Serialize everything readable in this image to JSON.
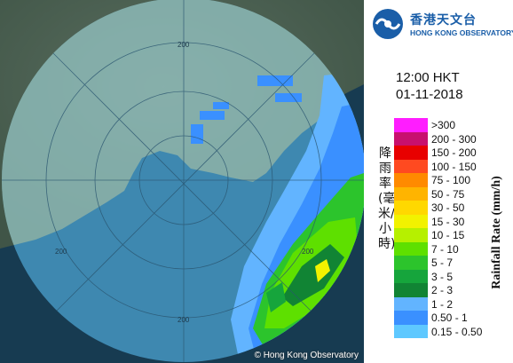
{
  "logo": {
    "name_zh": "香港天文台",
    "name_en": "HONG KONG OBSERVATORY"
  },
  "map": {
    "range_rings": [
      {
        "label": "200"
      },
      {
        "label": "200"
      },
      {
        "label": "200"
      },
      {
        "label": "200"
      }
    ],
    "credit": "© Hong Kong Observatory"
  },
  "timestamp": {
    "time": "12:00 HKT",
    "date": "01-11-2018"
  },
  "legend": {
    "title_en": "Rainfall Rate (mm/h)",
    "title_zh": "降雨率(毫米/小時)",
    "items": [
      {
        "label": ">300",
        "color": "#ff1dff"
      },
      {
        "label": "200 - 300",
        "color": "#c8106e"
      },
      {
        "label": "150 - 200",
        "color": "#e80000"
      },
      {
        "label": "100 - 150",
        "color": "#ff4a20"
      },
      {
        "label": "75 - 100",
        "color": "#ff8a00"
      },
      {
        "label": "50 - 75",
        "color": "#ffb400"
      },
      {
        "label": "30 - 50",
        "color": "#ffd800"
      },
      {
        "label": "15 - 30",
        "color": "#f2f200"
      },
      {
        "label": "10 - 15",
        "color": "#b6f000"
      },
      {
        "label": "7 - 10",
        "color": "#5ee000"
      },
      {
        "label": "5 - 7",
        "color": "#2cc42c"
      },
      {
        "label": "3 - 5",
        "color": "#16a53c"
      },
      {
        "label": "2 - 3",
        "color": "#118434"
      },
      {
        "label": "1 - 2",
        "color": "#62b4ff"
      },
      {
        "label": "0.50 - 1",
        "color": "#3a90ff"
      },
      {
        "label": "0.15 - 0.50",
        "color": "#5ec8ff"
      }
    ]
  }
}
